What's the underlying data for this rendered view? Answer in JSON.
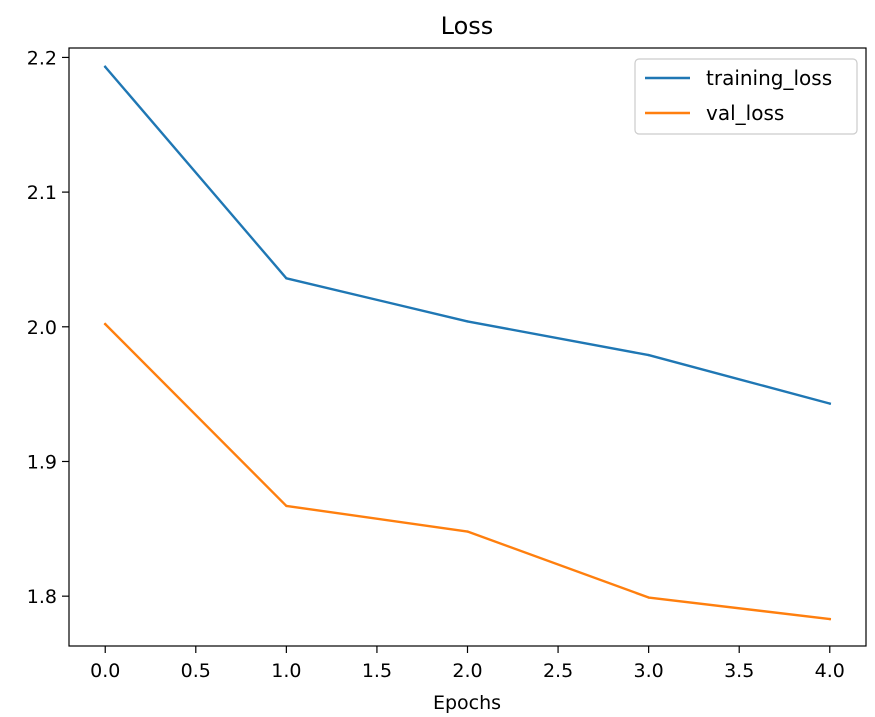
{
  "chart_data": {
    "type": "line",
    "title": "Loss",
    "xlabel": "Epochs",
    "ylabel": "",
    "x": [
      0,
      1,
      2,
      3,
      4
    ],
    "xlim": [
      -0.2,
      4.2
    ],
    "ylim": [
      1.763,
      2.207
    ],
    "xticks": [
      0.0,
      0.5,
      1.0,
      1.5,
      2.0,
      2.5,
      3.0,
      3.5,
      4.0
    ],
    "xtick_labels": [
      "0.0",
      "0.5",
      "1.0",
      "1.5",
      "2.0",
      "2.5",
      "3.0",
      "3.5",
      "4.0"
    ],
    "yticks": [
      1.8,
      1.9,
      2.0,
      2.1,
      2.2
    ],
    "ytick_labels": [
      "1.8",
      "1.9",
      "2.0",
      "2.1",
      "2.2"
    ],
    "grid": false,
    "legend_position": "top-right",
    "series": [
      {
        "name": "training_loss",
        "color": "#1f77b4",
        "values": [
          2.193,
          2.036,
          2.004,
          1.979,
          1.943
        ]
      },
      {
        "name": "val_loss",
        "color": "#ff7f0e",
        "values": [
          2.002,
          1.867,
          1.848,
          1.799,
          1.783
        ]
      }
    ]
  }
}
